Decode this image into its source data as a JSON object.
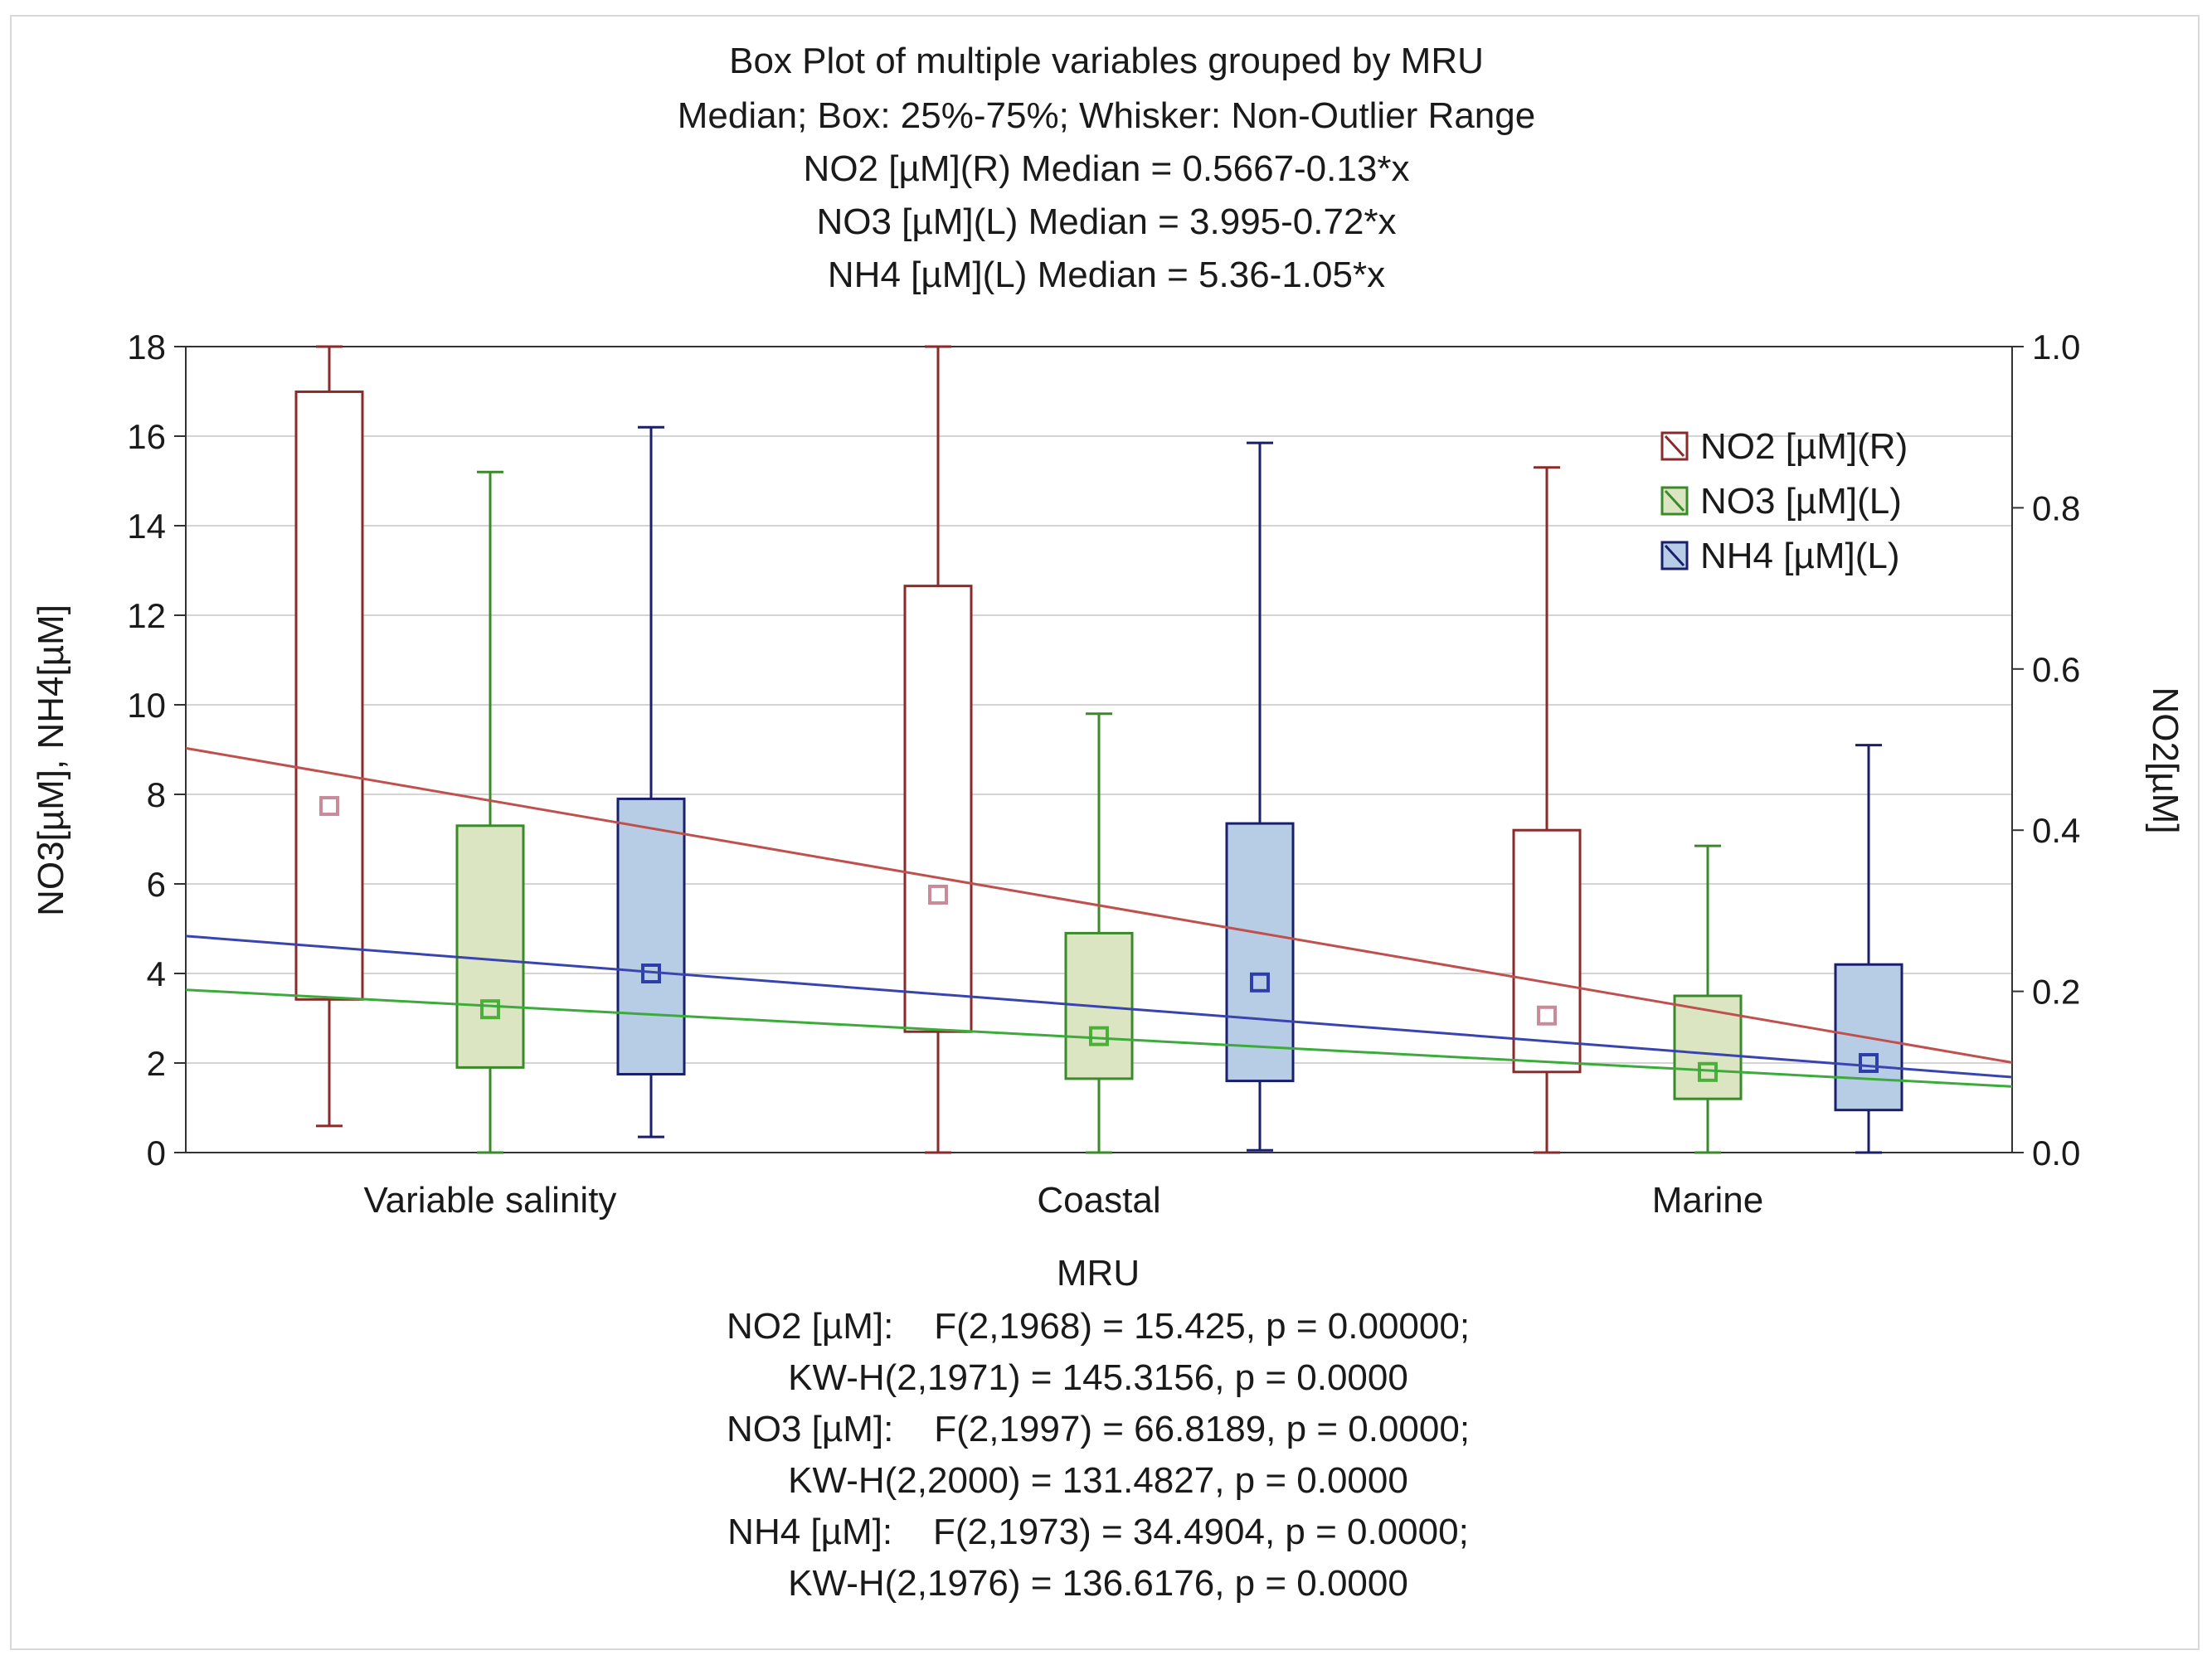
{
  "chart_data": {
    "type": "box",
    "title": "Box Plot of multiple variables grouped by  MRU",
    "subtitle_lines": [
      "Median; Box: 25%-75%; Whisker: Non-Outlier Range",
      "NO2 [µM](R) Median = 0.5667-0.13*x",
      "NO3 [µM](L) Median = 3.995-0.72*x",
      "NH4 [µM](L) Median = 5.36-1.05*x"
    ],
    "xlabel": "MRU",
    "ylabel_left": "NO3[µM],  NH4[µM]",
    "ylabel_right": "NO2[µM]",
    "ylim_left": [
      0,
      18
    ],
    "ylim_right": [
      0,
      1
    ],
    "yticks_left": [
      "0",
      "2",
      "4",
      "6",
      "8",
      "10",
      "12",
      "14",
      "16",
      "18"
    ],
    "yticks_right": [
      "0.0",
      "0.2",
      "0.4",
      "0.6",
      "0.8",
      "1.0"
    ],
    "categories": [
      "Variable salinity",
      "Coastal",
      "Marine"
    ],
    "grid": true,
    "legend_position": "top-right",
    "series": [
      {
        "name": "NO2 [µM](R)",
        "axis": "right",
        "color": "#8b2a2a",
        "fill": "#ffffff",
        "marker_color": "#c98a9a",
        "boxes": [
          {
            "min": 0.033,
            "q1": 0.19,
            "median": 0.43,
            "q3": 0.944,
            "max": 1.0
          },
          {
            "min": 0.0,
            "q1": 0.15,
            "median": 0.32,
            "q3": 0.703,
            "max": 1.0
          },
          {
            "min": 0.0,
            "q1": 0.1,
            "median": 0.17,
            "q3": 0.4,
            "max": 0.85
          }
        ],
        "trend": {
          "intercept": 0.5667,
          "slope": -0.13
        }
      },
      {
        "name": "NO3 [µM](L)",
        "axis": "left",
        "color": "#3a8a2a",
        "fill": "#dbe5c2",
        "marker_color": "#4caf3a",
        "boxes": [
          {
            "min": 0.0,
            "q1": 1.9,
            "median": 3.2,
            "q3": 7.3,
            "max": 15.2
          },
          {
            "min": 0.0,
            "q1": 1.65,
            "median": 2.6,
            "q3": 4.9,
            "max": 9.8
          },
          {
            "min": 0.0,
            "q1": 1.2,
            "median": 1.8,
            "q3": 3.5,
            "max": 6.85
          }
        ],
        "trend": {
          "intercept": 3.995,
          "slope": -0.72
        }
      },
      {
        "name": "NH4 [µM](L)",
        "axis": "left",
        "color": "#1a1f6b",
        "fill": "#b7cde6",
        "marker_color": "#2d3ea8",
        "boxes": [
          {
            "min": 0.35,
            "q1": 1.75,
            "median": 4.0,
            "q3": 7.9,
            "max": 16.2
          },
          {
            "min": 0.05,
            "q1": 1.6,
            "median": 3.8,
            "q3": 7.35,
            "max": 15.85
          },
          {
            "min": 0.0,
            "q1": 0.95,
            "median": 2.0,
            "q3": 4.2,
            "max": 9.1
          }
        ],
        "trend": {
          "intercept": 5.36,
          "slope": -1.05
        }
      }
    ],
    "trend_colors": {
      "NO2 [µM](R)": "#c0504d",
      "NO3 [µM](L)": "#3cab3c",
      "NH4 [µM](L)": "#3a44b0"
    },
    "footer_lines": [
      "NO2 [µM]:    F(2,1968) = 15.425, p = 0.00000;",
      "KW-H(2,1971) = 145.3156, p = 0.0000",
      "NO3 [µM]:    F(2,1997) = 66.8189, p = 0.0000;",
      "KW-H(2,2000) = 131.4827, p = 0.0000",
      "NH4 [µM]:    F(2,1973) = 34.4904, p = 0.0000;",
      "KW-H(2,1976) = 136.6176, p = 0.0000"
    ]
  }
}
